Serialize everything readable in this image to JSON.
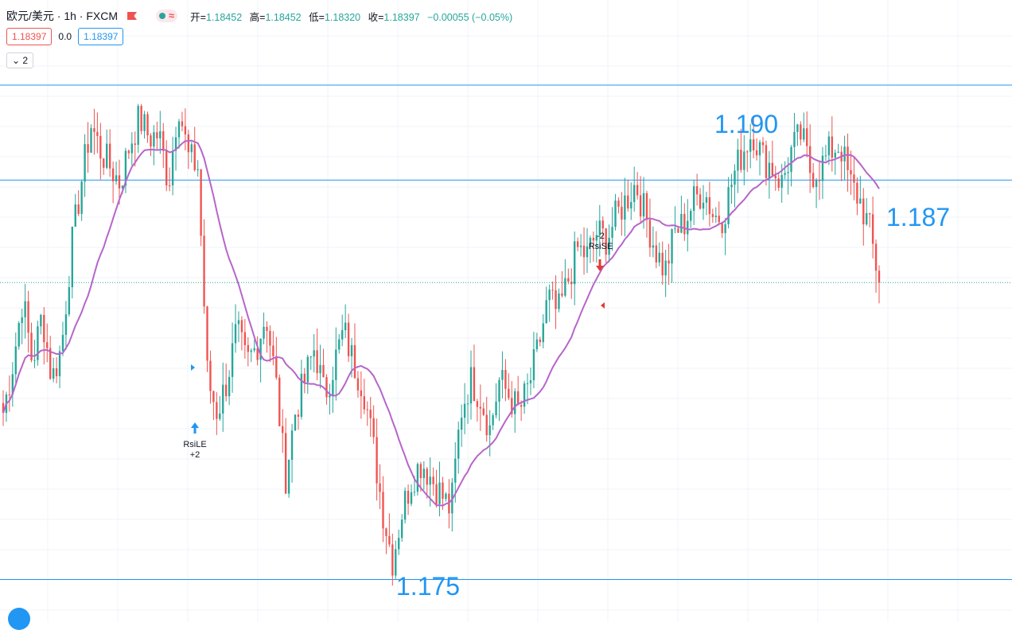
{
  "header": {
    "symbol": "欧元/美元 · 1h · FXCM",
    "ohlc": [
      {
        "key": "开=",
        "value": "1.18452"
      },
      {
        "key": "高=",
        "value": "1.18452"
      },
      {
        "key": "低=",
        "value": "1.18320"
      },
      {
        "key": "收=",
        "value": "1.18397"
      }
    ],
    "change": "−0.00055 (−0.05%)"
  },
  "prices": {
    "sell": "1.18397",
    "spread": "0.0",
    "buy": "1.18397"
  },
  "indicators_toggle": "2",
  "levels": [
    {
      "label": "1.190",
      "price": 1.19
    },
    {
      "label": "1.187",
      "price": 1.1871
    },
    {
      "label": "1.175",
      "price": 1.1749
    }
  ],
  "signals": [
    {
      "name": "RsiLE",
      "qty": "+2",
      "color": "#2196f3"
    },
    {
      "name": "RsiSE",
      "qty": "-2",
      "color": "#e53935"
    }
  ],
  "colors": {
    "up": "#26a69a",
    "down": "#ef5350",
    "ma": "#b765c9",
    "level": "#2196f3",
    "grid": "#f0f3fa"
  },
  "chart_data": {
    "type": "candlestick",
    "price_range": [
      1.1736,
      1.1926
    ],
    "close_series": [
      1.18,
      1.1815,
      1.1835,
      1.1815,
      1.183,
      1.181,
      1.182,
      1.185,
      1.187,
      1.1888,
      1.188,
      1.1875,
      1.187,
      1.1882,
      1.189,
      1.1884,
      1.1885,
      1.187,
      1.1895,
      1.1878,
      1.1875,
      1.181,
      1.18,
      1.181,
      1.1825,
      1.1815,
      1.182,
      1.183,
      1.181,
      1.178,
      1.18,
      1.181,
      1.182,
      1.1805,
      1.1815,
      1.1825,
      1.1815,
      1.1808,
      1.179,
      1.177,
      1.1755,
      1.177,
      1.178,
      1.1785,
      1.178,
      1.1775,
      1.177,
      1.18,
      1.181,
      1.1805,
      1.1795,
      1.181,
      1.1805,
      1.18,
      1.1808,
      1.182,
      1.1835,
      1.183,
      1.184,
      1.185,
      1.1848,
      1.1855,
      1.1853,
      1.186,
      1.1865,
      1.187,
      1.186,
      1.185,
      1.1843,
      1.1855,
      1.1858,
      1.1865,
      1.1868,
      1.186,
      1.186,
      1.1872,
      1.188,
      1.1886,
      1.1878,
      1.1875,
      1.187,
      1.188,
      1.1885,
      1.1873,
      1.1875,
      1.188,
      1.1882,
      1.187,
      1.1865,
      1.1856,
      1.184
    ],
    "moving_average": "purple line"
  }
}
